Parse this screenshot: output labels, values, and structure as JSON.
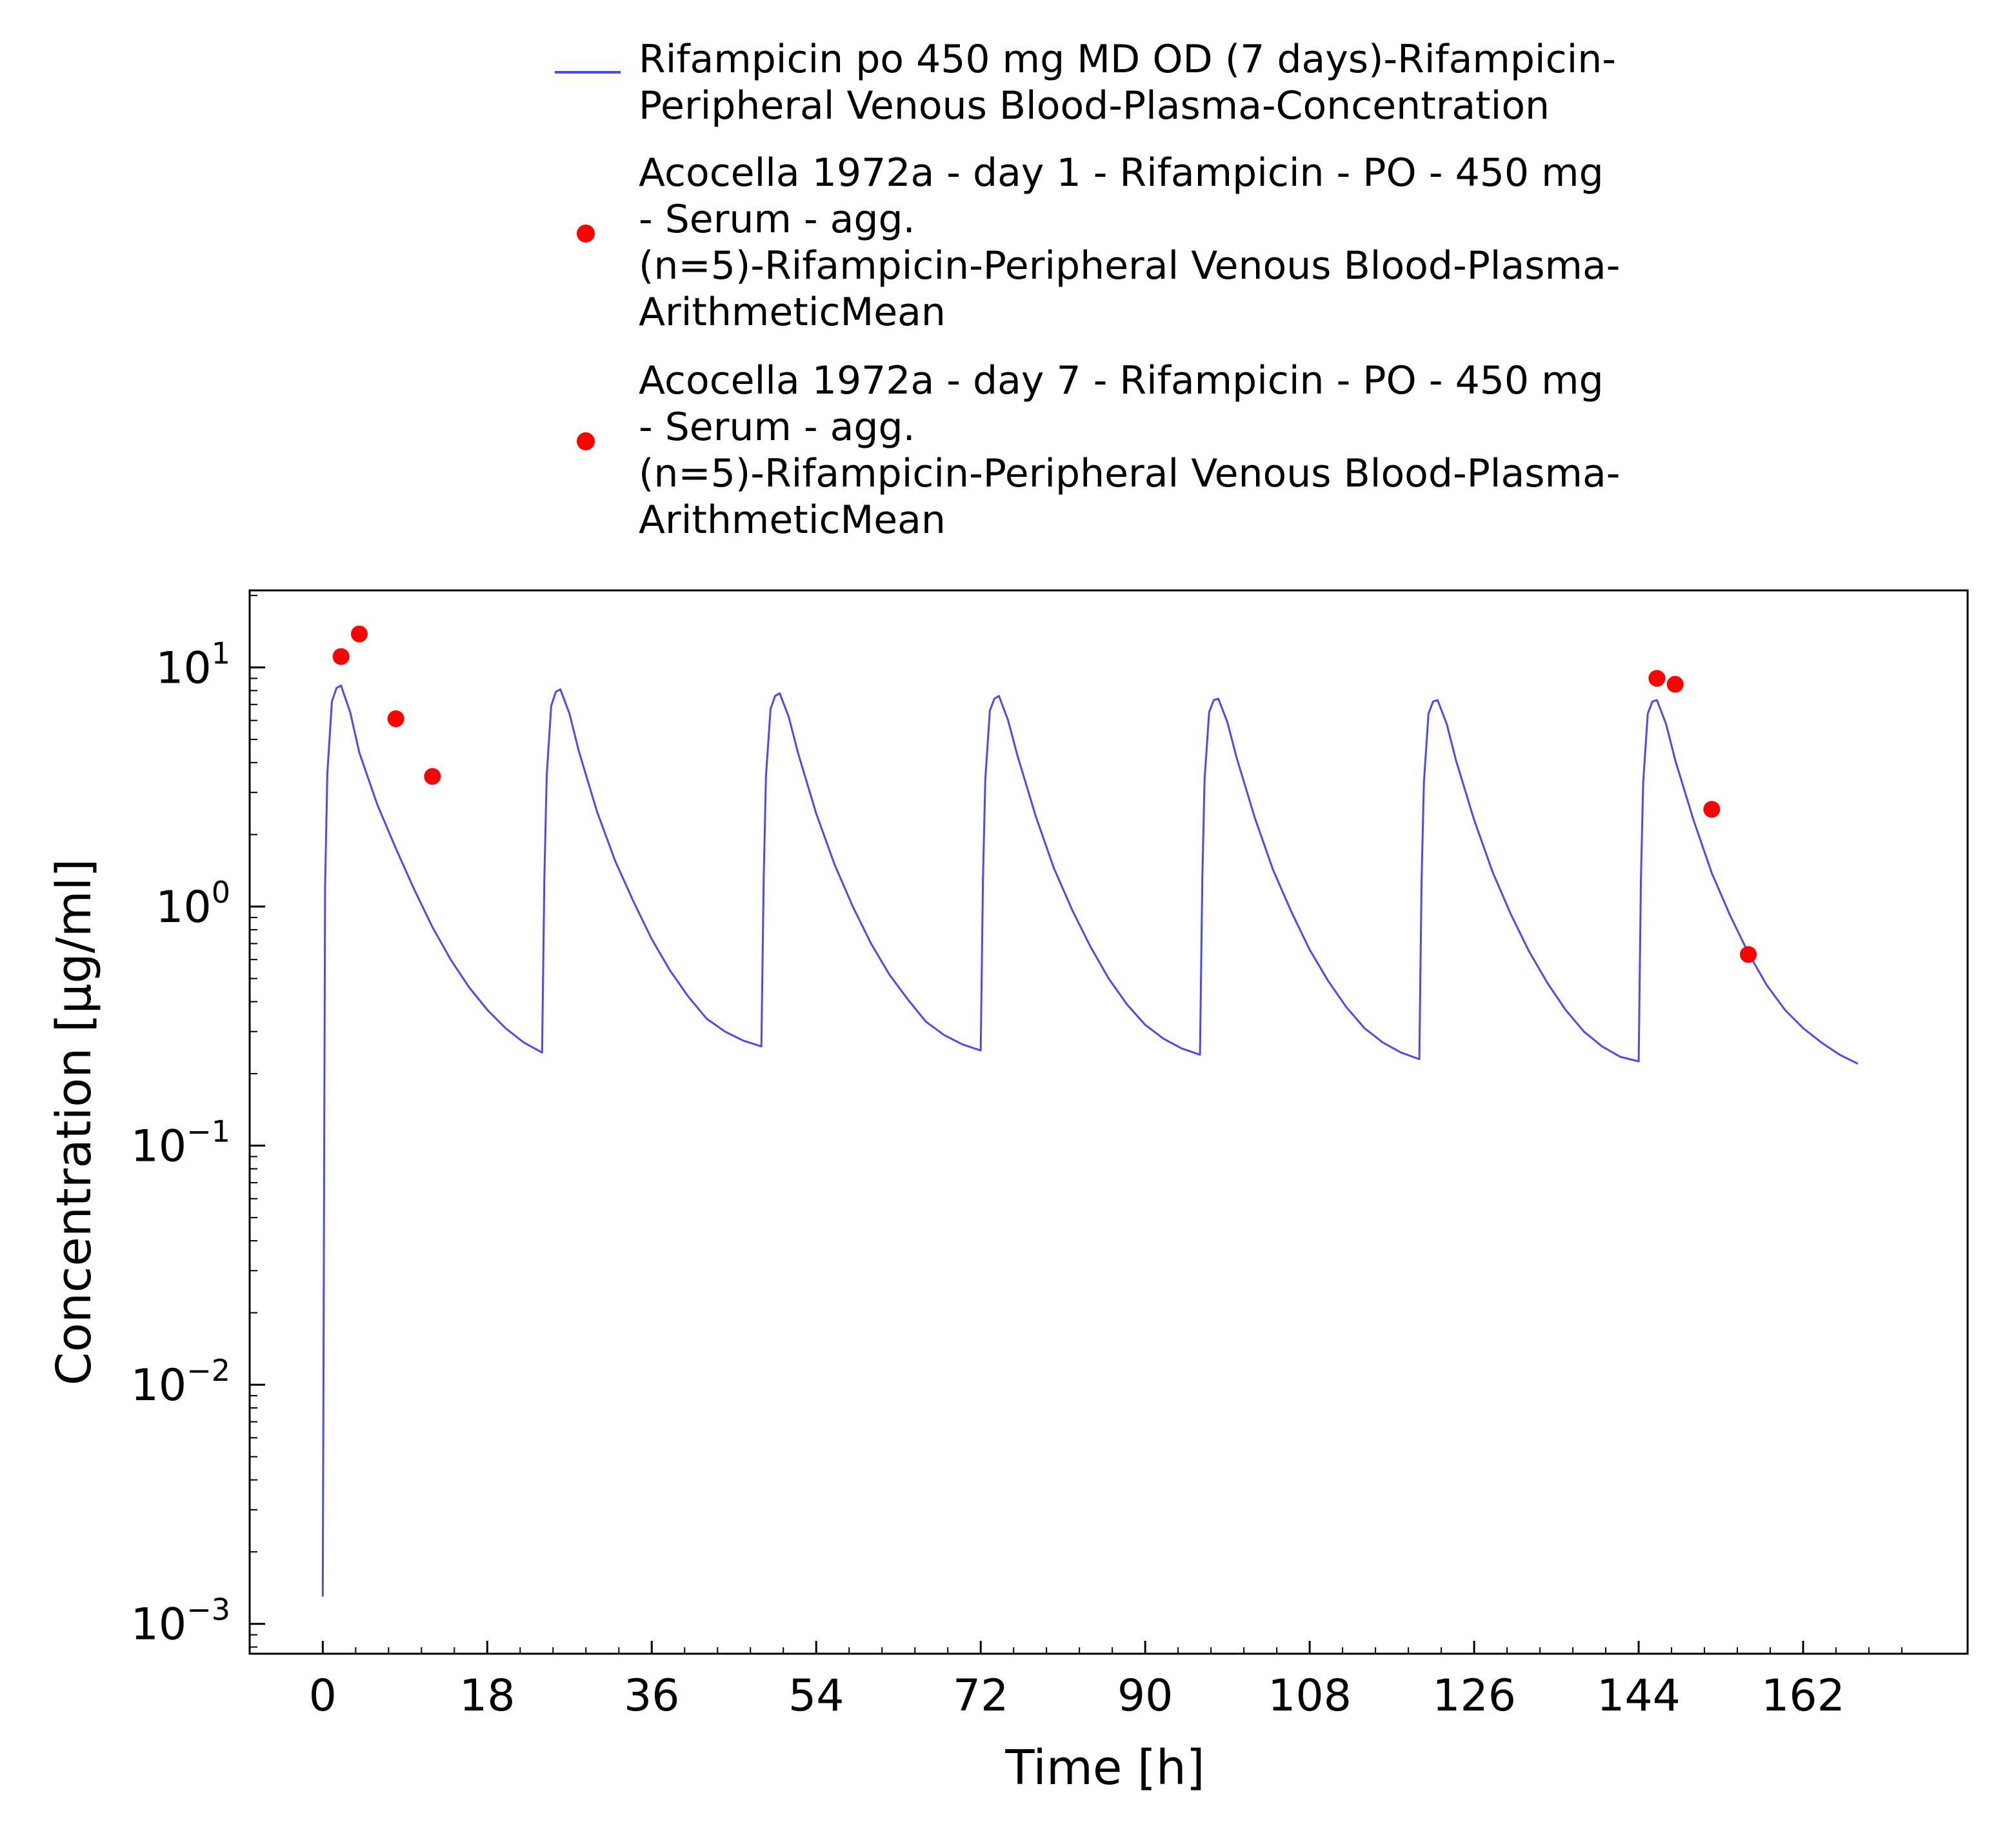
{
  "chart_data": {
    "type": "line",
    "xlabel": "Time [h]",
    "ylabel": "Concentration [µg/ml]",
    "xlim": [
      -8,
      180
    ],
    "ylim": [
      0.00075,
      21
    ],
    "yscale": "log",
    "x_ticks": [
      0,
      18,
      36,
      54,
      72,
      90,
      108,
      126,
      144,
      162
    ],
    "x_tick_labels": [
      "0",
      "18",
      "36",
      "54",
      "72",
      "90",
      "108",
      "126",
      "144",
      "162"
    ],
    "y_ticks": [
      {
        "value": 10,
        "base": "10",
        "exp": "1"
      },
      {
        "value": 1,
        "base": "10",
        "exp": "0"
      },
      {
        "value": 0.1,
        "base": "10",
        "exp": "−1"
      },
      {
        "value": 0.01,
        "base": "10",
        "exp": "−2"
      },
      {
        "value": 0.001,
        "base": "10",
        "exp": "−3"
      }
    ],
    "grid": false,
    "legend_position": "top",
    "colors": {
      "simulation": "#4b4bf0",
      "observed": "#ff0000"
    },
    "series": [
      {
        "name_lines": [
          "Rifampicin po 450 mg MD OD (7 days)-Rifampicin-",
          "Peripheral Venous Blood-Plasma-Concentration"
        ],
        "kind": "line",
        "x": [
          0,
          0.25,
          0.5,
          1,
          1.5,
          2,
          3,
          4,
          6,
          8,
          10,
          12,
          14,
          16,
          18,
          20,
          22,
          24,
          24.25,
          24.5,
          25,
          25.5,
          26,
          27,
          28,
          30,
          32,
          34,
          36,
          38,
          40,
          42,
          44,
          46,
          48,
          48.25,
          48.5,
          49,
          49.5,
          50,
          51,
          52,
          54,
          56,
          58,
          60,
          62,
          64,
          66,
          68,
          70,
          72,
          72.25,
          72.5,
          73,
          73.5,
          74,
          75,
          76,
          78,
          80,
          82,
          84,
          86,
          88,
          90,
          92,
          94,
          96,
          96.25,
          96.5,
          97,
          97.5,
          98,
          99,
          100,
          102,
          104,
          106,
          108,
          110,
          112,
          114,
          116,
          118,
          120,
          120.25,
          120.5,
          121,
          121.5,
          122,
          123,
          124,
          126,
          128,
          130,
          132,
          134,
          136,
          138,
          140,
          142,
          144,
          144.25,
          144.5,
          145,
          145.5,
          146,
          147,
          148,
          150,
          152,
          154,
          156,
          158,
          160,
          162,
          164,
          166,
          168
        ],
        "y": [
          0.0013,
          1.2,
          3.6,
          7.2,
          8.2,
          8.4,
          6.5,
          4.4,
          2.65,
          1.75,
          1.18,
          0.82,
          0.6,
          0.46,
          0.37,
          0.31,
          0.27,
          0.245,
          1.3,
          3.5,
          6.9,
          7.9,
          8.1,
          6.4,
          4.5,
          2.5,
          1.55,
          1.05,
          0.73,
          0.54,
          0.42,
          0.34,
          0.3,
          0.275,
          0.26,
          1.3,
          3.5,
          6.7,
          7.6,
          7.8,
          6.2,
          4.4,
          2.45,
          1.5,
          1.0,
          0.7,
          0.52,
          0.41,
          0.33,
          0.29,
          0.265,
          0.25,
          1.3,
          3.4,
          6.6,
          7.4,
          7.6,
          6.0,
          4.3,
          2.4,
          1.45,
          0.97,
          0.68,
          0.5,
          0.39,
          0.32,
          0.28,
          0.255,
          0.24,
          1.3,
          3.4,
          6.5,
          7.3,
          7.4,
          5.9,
          4.2,
          2.35,
          1.42,
          0.95,
          0.66,
          0.49,
          0.38,
          0.31,
          0.27,
          0.245,
          0.23,
          1.3,
          3.3,
          6.4,
          7.2,
          7.3,
          5.8,
          4.1,
          2.3,
          1.4,
          0.93,
          0.65,
          0.48,
          0.37,
          0.3,
          0.26,
          0.235,
          0.225,
          1.3,
          3.3,
          6.4,
          7.2,
          7.3,
          5.8,
          4.1,
          2.3,
          1.38,
          0.92,
          0.64,
          0.47,
          0.37,
          0.31,
          0.27,
          0.24,
          0.22
        ]
      },
      {
        "name_lines": [
          "Acocella 1972a - day 1 - Rifampicin - PO - 450 mg",
          "- Serum - agg.",
          "(n=5)-Rifampicin-Peripheral Venous Blood-Plasma-",
          "ArithmeticMean"
        ],
        "kind": "scatter",
        "x": [
          2,
          4,
          8,
          12
        ],
        "y": [
          11.1,
          13.8,
          6.1,
          3.5
        ]
      },
      {
        "name_lines": [
          "Acocella 1972a - day 7 - Rifampicin - PO - 450 mg",
          "- Serum - agg.",
          "(n=5)-Rifampicin-Peripheral Venous Blood-Plasma-",
          "ArithmeticMean"
        ],
        "kind": "scatter",
        "x": [
          146,
          148,
          152,
          156
        ],
        "y": [
          9.0,
          8.5,
          2.55,
          0.63
        ]
      }
    ]
  }
}
